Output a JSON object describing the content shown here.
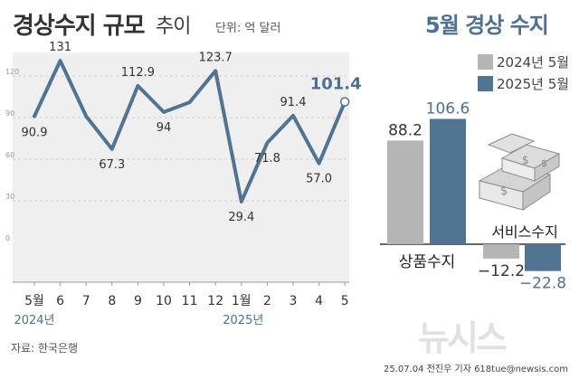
{
  "header": {
    "title": "경상수지 규모",
    "subtitle": "추이",
    "unit": "단위: 억 달러"
  },
  "colors": {
    "line": "#527493",
    "plot_bg": "#efefef",
    "bar_2024": "#b5b5b5",
    "bar_2025": "#527493",
    "text_dark": "#333333",
    "highlight": "#4d7192"
  },
  "chart_data": [
    {
      "type": "line",
      "title": "경상수지 규모 추이",
      "unit": "억 달러",
      "x": [
        "5월",
        "6",
        "7",
        "8",
        "9",
        "10",
        "11",
        "12",
        "1월",
        "2",
        "3",
        "4",
        "5"
      ],
      "year_labels": [
        "2024년",
        "2025년"
      ],
      "values": [
        90.9,
        131,
        91,
        67.3,
        112.9,
        94,
        101,
        123.7,
        29.4,
        71.8,
        91.4,
        57.0,
        101.4
      ],
      "data_labels": [
        "90.9",
        "131",
        "",
        "67.3",
        "112.9",
        "94",
        "",
        "123.7",
        "29.4",
        "71.8",
        "91.4",
        "57.0",
        "101.4"
      ],
      "yticks": [
        0,
        30,
        60,
        90,
        120
      ],
      "ylim": [
        0,
        140
      ],
      "grid": true
    },
    {
      "type": "bar",
      "title": "5월 경상 수지",
      "categories": [
        "상품수지",
        "서비스수지"
      ],
      "series": [
        {
          "name": "2024년 5월",
          "values": [
            88.2,
            -12.2
          ],
          "labels": [
            "88.2",
            "−12.2"
          ]
        },
        {
          "name": "2025년 5월",
          "values": [
            106.6,
            -22.8
          ],
          "labels": [
            "106.6",
            "−22.8"
          ]
        }
      ]
    }
  ],
  "footer": {
    "source": "자료: 한국은행",
    "credit": "25.07.04 전진우 기자 618tue@newsis.com",
    "watermark": "뉴시스"
  }
}
